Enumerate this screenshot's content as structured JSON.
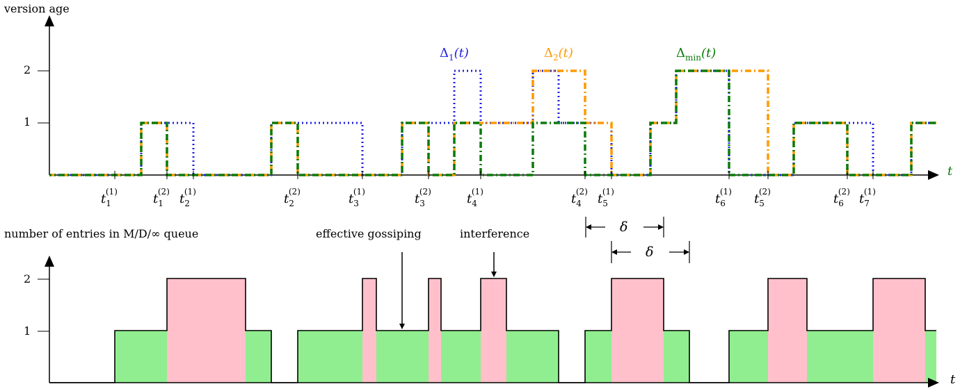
{
  "top_plot": {
    "ylabel": "version age",
    "xlabel": "t",
    "yticks": [
      "1",
      "2"
    ],
    "series": [
      {
        "name": "Δ1(t)",
        "label_main": "Δ",
        "label_sub": "1",
        "label_arg": "(t)",
        "color": "#1f1fe0",
        "style": "dotted"
      },
      {
        "name": "Δ2(t)",
        "label_main": "Δ",
        "label_sub": "2",
        "label_arg": "(t)",
        "color": "#ff9900",
        "style": "dash-dot"
      },
      {
        "name": "Δmin(t)",
        "label_main": "Δ",
        "label_sub": "min",
        "label_arg": "(t)",
        "color": "#0a7a0a",
        "style": "dash-dot"
      }
    ],
    "time_labels": [
      {
        "base": "t",
        "sub": "1",
        "sup": "(1)"
      },
      {
        "base": "t",
        "sub": "1",
        "sup": "(2)"
      },
      {
        "base": "t",
        "sub": "2",
        "sup": "(1)"
      },
      {
        "base": "t",
        "sub": "2",
        "sup": "(2)"
      },
      {
        "base": "t",
        "sub": "3",
        "sup": "(1)"
      },
      {
        "base": "t",
        "sub": "3",
        "sup": "(2)"
      },
      {
        "base": "t",
        "sub": "4",
        "sup": "(1)"
      },
      {
        "base": "t",
        "sub": "4",
        "sup": "(2)"
      },
      {
        "base": "t",
        "sub": "5",
        "sup": "(1)"
      },
      {
        "base": "t",
        "sub": "6",
        "sup": "(1)"
      },
      {
        "base": "t",
        "sub": "5",
        "sup": "(2)"
      },
      {
        "base": "t",
        "sub": "6",
        "sup": "(2)"
      },
      {
        "base": "t",
        "sub": "7",
        "sup": "(1)"
      }
    ]
  },
  "delta_label": "δ",
  "bottom_plot": {
    "ylabel": "number of entries in M/D/∞ queue",
    "xlabel": "t",
    "yticks": [
      "1",
      "2"
    ],
    "annotations": [
      "effective gossiping",
      "interference"
    ],
    "colors": {
      "one_entry": "#90ee90",
      "two_entries": "#ffc0cb"
    }
  }
}
